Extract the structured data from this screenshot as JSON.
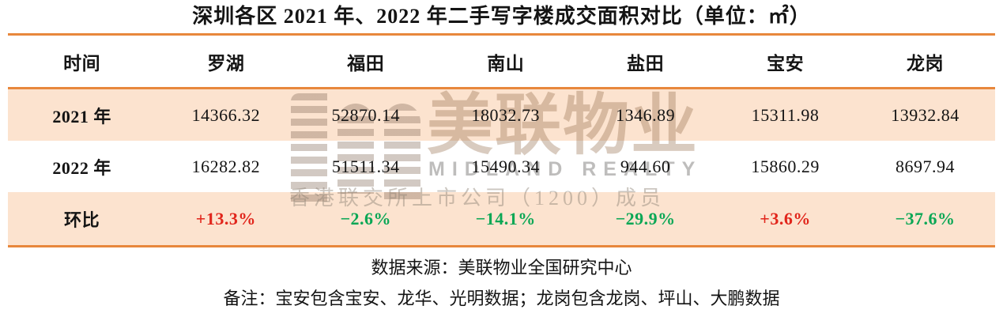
{
  "title": "深圳各区 2021 年、2022 年二手写字楼成交面积对比（单位：㎡）",
  "colors": {
    "accent_orange": "#E8873C",
    "row_peach": "#FCE3CF",
    "positive_red": "#E1251B",
    "negative_green": "#0AA755",
    "text": "#141414"
  },
  "table": {
    "headers": [
      "时间",
      "罗湖",
      "福田",
      "南山",
      "盐田",
      "宝安",
      "龙岗"
    ],
    "rows": [
      {
        "label": "2021 年",
        "values": [
          "14366.32",
          "52870.14",
          "18032.73",
          "1346.89",
          "15311.98",
          "13932.84"
        ]
      },
      {
        "label": "2022 年",
        "values": [
          "16282.82",
          "51511.34",
          "15490.34",
          "944.60",
          "15860.29",
          "8697.94"
        ]
      },
      {
        "label": "环比",
        "values": [
          "+13.3%",
          "−2.6%",
          "−14.1%",
          "−29.9%",
          "+3.6%",
          "−37.6%"
        ],
        "value_colors": [
          "#E1251B",
          "#0AA755",
          "#0AA755",
          "#0AA755",
          "#E1251B",
          "#0AA755"
        ]
      }
    ]
  },
  "footer": {
    "source": "数据来源：美联物业全国研究中心",
    "note": "备注：宝安包含宝安、龙华、光明数据；龙岗包含龙岗、坪山、大鹏数据"
  },
  "watermark": {
    "logo": "midland-striped-m-logo",
    "brand": "美联物业",
    "brand_en": "MIDLAND REALTY",
    "tagline": "香港联交所上市公司（1200）成员"
  },
  "chart_data": {
    "type": "table",
    "title": "深圳各区 2021 年、2022 年二手写字楼成交面积对比",
    "unit": "㎡",
    "categories": [
      "罗湖",
      "福田",
      "南山",
      "盐田",
      "宝安",
      "龙岗"
    ],
    "series": [
      {
        "name": "2021 年",
        "values": [
          14366.32,
          52870.14,
          18032.73,
          1346.89,
          15311.98,
          13932.84
        ]
      },
      {
        "name": "2022 年",
        "values": [
          16282.82,
          51511.34,
          15490.34,
          944.6,
          15860.29,
          8697.94
        ]
      },
      {
        "name": "环比",
        "values": [
          "+13.3%",
          "-2.6%",
          "-14.1%",
          "-29.9%",
          "+3.6%",
          "-37.6%"
        ]
      }
    ],
    "legend_position": "none",
    "grid": false
  }
}
